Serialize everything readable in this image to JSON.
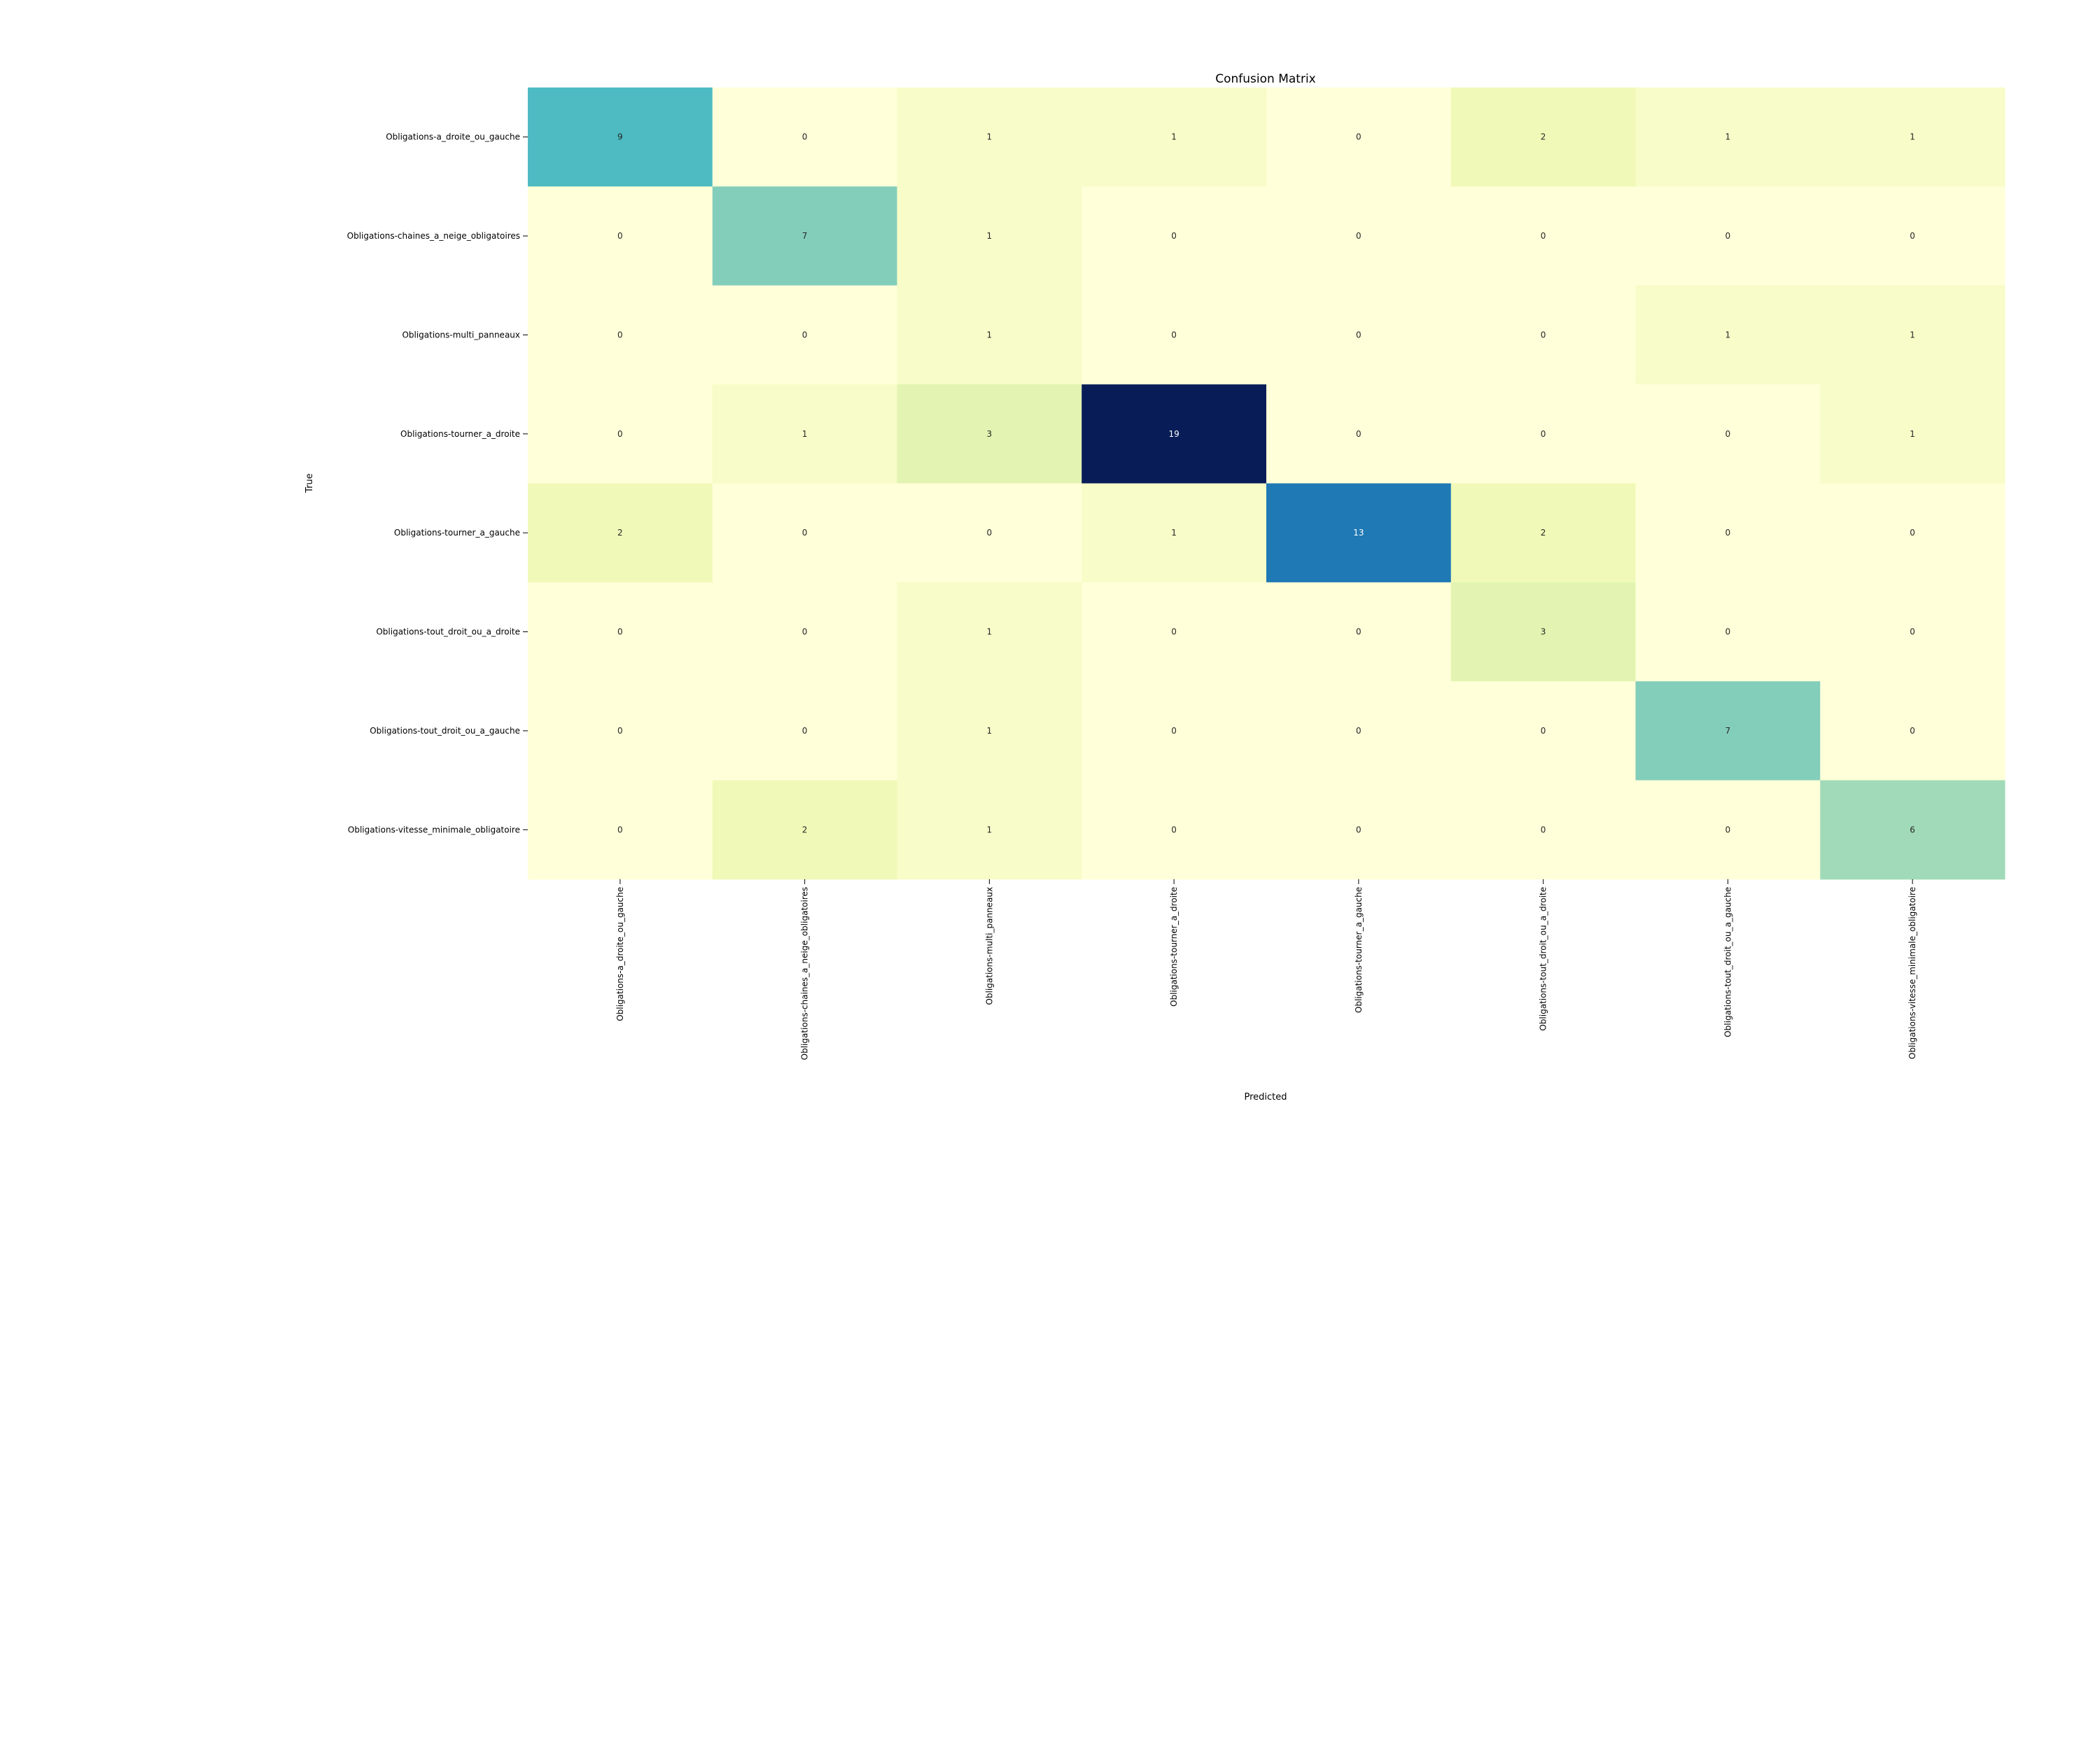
{
  "chart_data": {
    "type": "heatmap",
    "title": "Confusion Matrix",
    "xlabel": "Predicted",
    "ylabel": "True",
    "x_categories": [
      "Obligations-a_droite_ou_gauche",
      "Obligations-chaines_a_neige_obligatoires",
      "Obligations-multi_panneaux",
      "Obligations-tourner_a_droite",
      "Obligations-tourner_a_gauche",
      "Obligations-tout_droit_ou_a_droite",
      "Obligations-tout_droit_ou_a_gauche",
      "Obligations-vitesse_minimale_obligatoire"
    ],
    "y_categories": [
      "Obligations-a_droite_ou_gauche",
      "Obligations-chaines_a_neige_obligatoires",
      "Obligations-multi_panneaux",
      "Obligations-tourner_a_droite",
      "Obligations-tourner_a_gauche",
      "Obligations-tout_droit_ou_a_droite",
      "Obligations-tout_droit_ou_a_gauche",
      "Obligations-vitesse_minimale_obligatoire"
    ],
    "values": [
      [
        9,
        0,
        1,
        1,
        0,
        2,
        1,
        1
      ],
      [
        0,
        7,
        1,
        0,
        0,
        0,
        0,
        0
      ],
      [
        0,
        0,
        1,
        0,
        0,
        0,
        1,
        1
      ],
      [
        0,
        1,
        3,
        19,
        0,
        0,
        0,
        1
      ],
      [
        2,
        0,
        0,
        1,
        13,
        2,
        0,
        0
      ],
      [
        0,
        0,
        1,
        0,
        0,
        3,
        0,
        0
      ],
      [
        0,
        0,
        1,
        0,
        0,
        0,
        7,
        0
      ],
      [
        0,
        2,
        1,
        0,
        0,
        0,
        0,
        6
      ]
    ],
    "colormap": "YlGnBu",
    "value_range": [
      0,
      19
    ],
    "colorbar": false
  }
}
